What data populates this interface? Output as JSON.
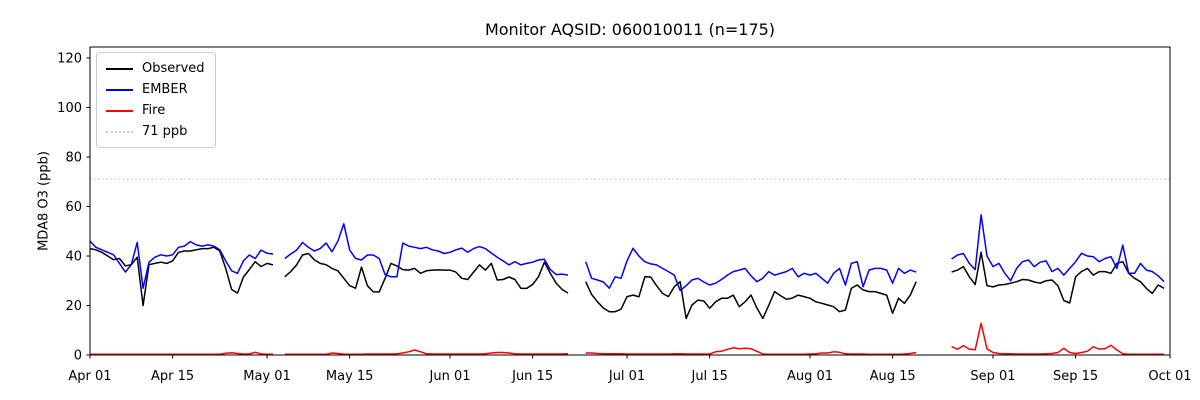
{
  "chart_data": {
    "type": "line",
    "title": "Monitor AQSID: 060010011 (n=175)",
    "ylabel": "MDA8 O3 (ppb)",
    "ylim": [
      0,
      124.44
    ],
    "yticks": [
      0,
      20,
      40,
      60,
      80,
      100,
      120
    ],
    "xtick_labels": [
      "Apr 01",
      "Apr 15",
      "May 01",
      "May 15",
      "Jun 01",
      "Jun 15",
      "Jul 01",
      "Jul 15",
      "Aug 01",
      "Aug 15",
      "Sep 01",
      "Sep 15",
      "Oct 01"
    ],
    "xtick_days": [
      0,
      14,
      30,
      44,
      61,
      75,
      91,
      105,
      122,
      136,
      153,
      167,
      183
    ],
    "x_total_days": 183,
    "grid": false,
    "legend_position": "upper left",
    "threshold": {
      "value": 71,
      "label": "71 ppb",
      "color": "#cccccc",
      "style": "dotted"
    },
    "legend": [
      {
        "label": "Observed",
        "color": "#000000",
        "style": "solid"
      },
      {
        "label": "EMBER",
        "color": "#0000ff",
        "style": "solid"
      },
      {
        "label": "Fire",
        "color": "#ff0000",
        "style": "solid"
      },
      {
        "label": "71 ppb",
        "color": "#cccccc",
        "style": "dotted"
      }
    ],
    "series": [
      {
        "name": "Observed",
        "color": "#000000",
        "values": [
          43,
          42.5,
          41.5,
          40,
          38.5,
          39,
          36,
          36.5,
          39.5,
          20,
          36.5,
          37,
          37.5,
          37,
          38,
          41.5,
          42,
          42,
          42.5,
          43,
          43,
          43.5,
          42,
          35,
          26.5,
          25,
          31.5,
          34.5,
          37.7,
          35.7,
          37,
          36.4,
          null,
          31.6,
          33.7,
          36.4,
          40.4,
          41,
          38.5,
          37,
          36.5,
          35,
          34,
          31,
          28,
          27,
          35.5,
          28,
          25.5,
          25.5,
          31,
          37,
          36,
          34.5,
          34.3,
          35,
          33,
          34,
          34.3,
          34.4,
          34.3,
          34.3,
          33.5,
          31,
          30.5,
          33.5,
          36.4,
          34.3,
          37,
          30.3,
          30.5,
          31.5,
          30.5,
          27,
          26.9,
          28.5,
          31.6,
          37.5,
          33,
          29,
          26.5,
          25,
          null,
          null,
          29.6,
          24.5,
          21.5,
          19,
          17.5,
          17.5,
          18.5,
          23.6,
          24.2,
          23.5,
          31.6,
          31.5,
          28,
          24.9,
          23.6,
          27.6,
          29.6,
          14.8,
          20.2,
          22.2,
          21.8,
          18.9,
          21.5,
          22.9,
          22.9,
          24.2,
          19.5,
          21.5,
          24.2,
          19,
          14.8,
          20,
          25.6,
          24,
          22.5,
          23,
          24.2,
          23.6,
          22.9,
          21.5,
          20.9,
          20.2,
          19.5,
          17.5,
          18.2,
          26.9,
          28.3,
          26.3,
          25.6,
          25.6,
          24.9,
          24.2,
          16.8,
          22.9,
          20.9,
          24.2,
          29.6,
          null,
          null,
          null,
          null,
          null,
          33.5,
          34.3,
          35.7,
          31.6,
          28.5,
          41.5,
          28,
          27.5,
          28.3,
          28.5,
          29,
          29.6,
          30.5,
          30.3,
          29.5,
          29,
          30,
          30.3,
          28,
          22,
          21,
          31.6,
          33.7,
          35,
          32.3,
          33.7,
          33.7,
          33,
          37,
          37.7,
          33,
          31,
          29.6,
          26.9,
          24.9,
          28.3,
          26.9
        ]
      },
      {
        "name": "EMBER",
        "color": "#0000ff",
        "values": [
          46,
          43.5,
          42.5,
          41.5,
          40.5,
          37,
          33.5,
          36.5,
          45.5,
          27,
          37.5,
          39.5,
          40.5,
          40,
          40.5,
          43.5,
          44,
          45.8,
          44.5,
          44,
          44.5,
          44,
          42.5,
          38,
          34,
          33,
          38,
          40.4,
          39,
          42.4,
          41.1,
          40.8,
          null,
          39,
          40.8,
          42.4,
          45.5,
          43.5,
          42,
          43,
          45.2,
          41.7,
          46,
          53,
          42.4,
          39,
          38.4,
          40.4,
          40.4,
          39,
          32.5,
          31.6,
          31.6,
          45.2,
          44,
          43.5,
          43,
          43.5,
          42.5,
          42,
          41,
          41.5,
          42.5,
          43.2,
          41.5,
          43,
          43.8,
          43,
          41.2,
          39.5,
          38,
          36.4,
          37.7,
          36.4,
          37,
          37.5,
          38.4,
          38.7,
          34.5,
          32.5,
          32.7,
          32.3,
          null,
          null,
          37.7,
          31,
          30.3,
          29.5,
          27,
          31.6,
          31,
          38,
          43.1,
          40,
          37.7,
          36.8,
          36.4,
          35,
          33.7,
          32.3,
          26,
          28,
          30.3,
          31,
          29.5,
          28.3,
          29,
          30.5,
          32.3,
          33.7,
          34.3,
          35,
          32,
          29.6,
          31,
          33.7,
          32.3,
          33,
          33.7,
          35,
          31.6,
          33,
          32.3,
          33,
          31,
          29,
          33,
          35,
          28.3,
          37,
          37.7,
          27.6,
          34.3,
          35,
          35,
          34.3,
          29,
          35,
          33,
          34.3,
          33.5,
          null,
          null,
          null,
          null,
          null,
          38.8,
          40.4,
          41,
          37,
          34.5,
          56.6,
          40,
          35.7,
          37,
          33,
          30,
          35,
          37.7,
          38.4,
          35.7,
          37.5,
          38,
          33.7,
          35,
          32.3,
          35,
          37.7,
          41.1,
          40,
          39.7,
          37.7,
          39,
          39.7,
          35,
          44.4,
          33,
          33,
          37,
          34.3,
          33.7,
          32,
          29.6
        ]
      },
      {
        "name": "Fire",
        "color": "#ff0000",
        "values": [
          0.3,
          0.3,
          0.3,
          0.3,
          0.3,
          0.3,
          0.3,
          0.3,
          0.3,
          0.3,
          0.3,
          0.3,
          0.3,
          0.3,
          0.3,
          0.3,
          0.3,
          0.3,
          0.3,
          0.3,
          0.3,
          0.3,
          0.3,
          0.7,
          0.9,
          0.6,
          0.4,
          0.4,
          1.1,
          0.4,
          0.3,
          0.3,
          null,
          0.3,
          0.3,
          0.3,
          0.3,
          0.3,
          0.3,
          0.3,
          0.3,
          0.8,
          0.6,
          0.3,
          0.3,
          0.3,
          0.3,
          0.4,
          0.4,
          0.4,
          0.4,
          0.4,
          0.5,
          0.8,
          1.3,
          2,
          1.3,
          0.5,
          0.4,
          0.4,
          0.4,
          0.4,
          0.4,
          0.4,
          0.4,
          0.4,
          0.4,
          0.5,
          0.8,
          1,
          1,
          0.8,
          0.5,
          0.4,
          0.4,
          0.4,
          0.4,
          0.4,
          0.4,
          0.4,
          0.4,
          0.5,
          null,
          null,
          0.8,
          0.8,
          0.6,
          0.5,
          0.5,
          0.5,
          0.5,
          0.4,
          0.4,
          0.4,
          0.4,
          0.4,
          0.4,
          0.4,
          0.4,
          0.5,
          0.5,
          0.4,
          0.4,
          0.4,
          0.4,
          0.4,
          1.3,
          1.5,
          2.3,
          2.9,
          2.5,
          2.7,
          2.5,
          1.5,
          0.4,
          0.3,
          0.3,
          0.3,
          0.3,
          0.3,
          0.3,
          0.3,
          0.4,
          0.5,
          0.8,
          0.8,
          1.3,
          1.1,
          0.5,
          0.4,
          0.4,
          0.4,
          0.3,
          0.3,
          0.3,
          0.3,
          0.3,
          0.3,
          0.4,
          0.6,
          1,
          null,
          null,
          null,
          null,
          null,
          3.4,
          2.3,
          3.8,
          2.4,
          2.1,
          12.8,
          2.5,
          1,
          0.6,
          0.5,
          0.5,
          0.4,
          0.4,
          0.4,
          0.4,
          0.4,
          0.5,
          0.6,
          1,
          2.7,
          1,
          0.6,
          1,
          1.5,
          3.3,
          2.4,
          2.6,
          3.9,
          2,
          0.5,
          0.3,
          0.3,
          0.3,
          0.3,
          0.3,
          0.3,
          0.3
        ]
      }
    ]
  }
}
